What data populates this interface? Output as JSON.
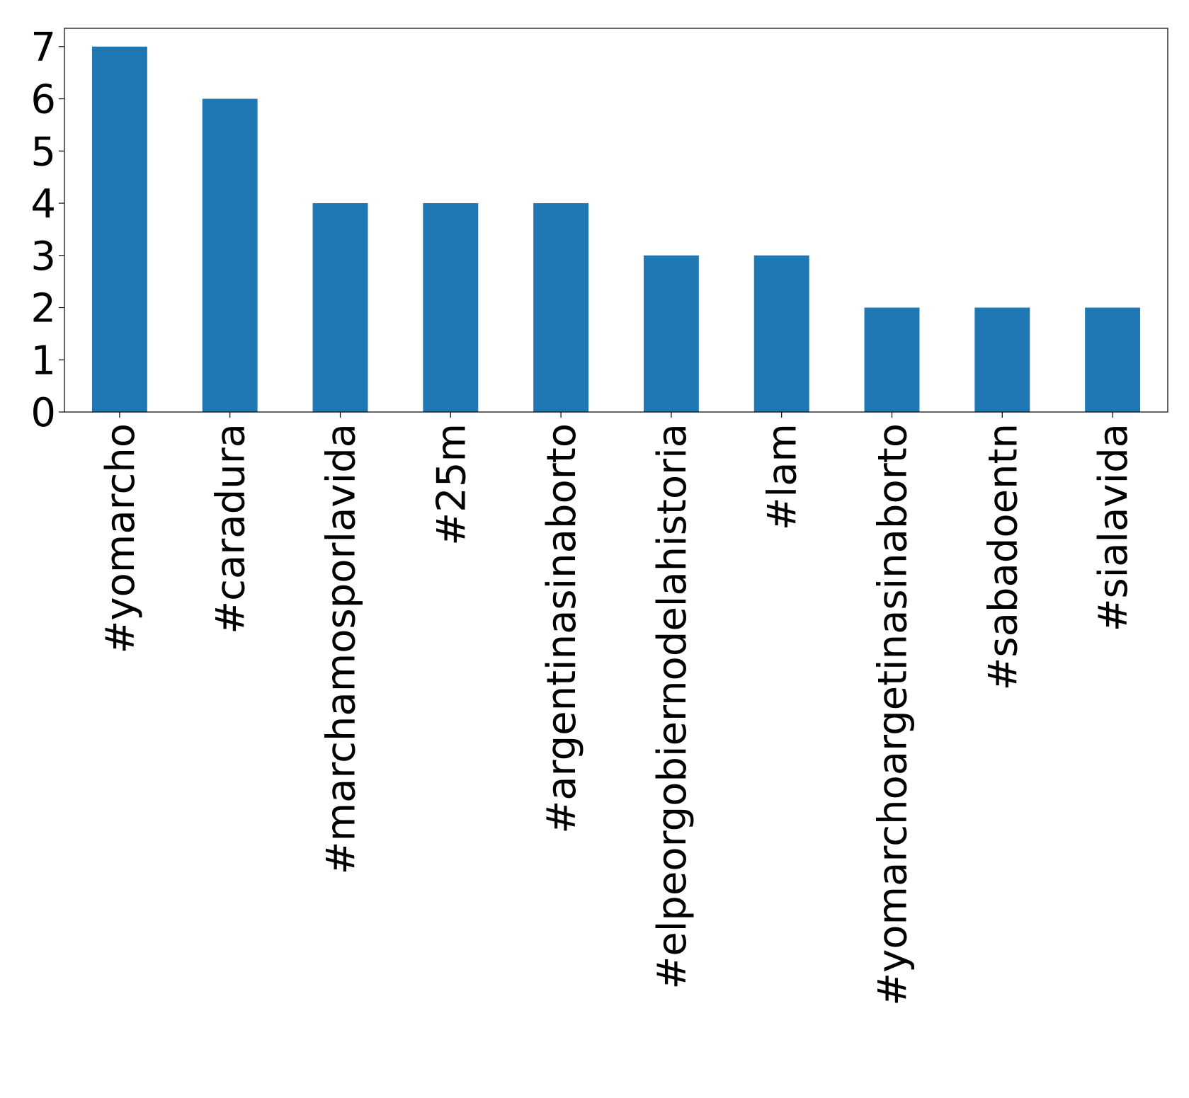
{
  "chart_data": {
    "type": "bar",
    "title": "",
    "xlabel": "",
    "ylabel": "",
    "categories": [
      "#yomarcho",
      "#caradura",
      "#marchamosporlavida",
      "#25m",
      "#argentinasinaborto",
      "#elpeorgobiernodelahistoria",
      "#lam",
      "#yomarchoargetinasinaborto",
      "#sabadoentn",
      "#sialavida"
    ],
    "values": [
      7,
      6,
      4,
      4,
      4,
      3,
      3,
      2,
      2,
      2
    ],
    "ylim": [
      0,
      7.35
    ],
    "yticks": [
      0,
      1,
      2,
      3,
      4,
      5,
      6,
      7
    ],
    "grid": false,
    "legend": "none",
    "bar_color": "#1f77b4"
  }
}
